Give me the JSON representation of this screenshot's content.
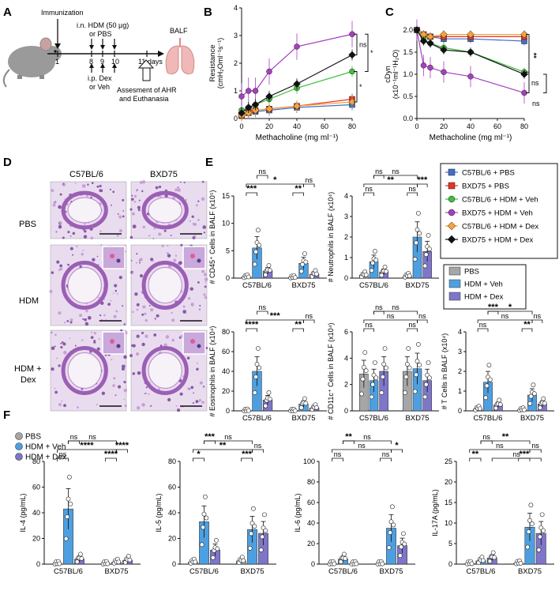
{
  "panel_letters": {
    "A": "A",
    "B": "B",
    "C": "C",
    "D": "D",
    "E": "E",
    "F": "F"
  },
  "panelA": {
    "immunization": "Immunization",
    "treatment": "i.n. HDM (50 µg)",
    "treatment2": "or PBS",
    "drug": "i.p. Dex",
    "drug2": "or Veh",
    "days": [
      "1",
      "8",
      "9",
      "10",
      "11 days"
    ],
    "balf": "BALF",
    "assess1": "Assesment of AHR",
    "assess2": "and Euthanasia"
  },
  "colors": {
    "c57_pbs": "#3f6fc9",
    "bxd_pbs": "#e63323",
    "c57_hdm_veh": "#3fbf3f",
    "bxd_hdm_veh": "#a63fbf",
    "c57_hdm_dex": "#f4a23a",
    "bxd_hdm_dex": "#111111",
    "bar_pbs": "#a6a6a6",
    "bar_veh": "#4d9fe0",
    "bar_dex": "#7d76c9"
  },
  "legend_lines": [
    {
      "label": "C57BL/6 + PBS",
      "color": "#3f6fc9",
      "marker": "square"
    },
    {
      "label": "BXD75 + PBS",
      "color": "#e63323",
      "marker": "square"
    },
    {
      "label": "C57BL/6 + HDM + Veh",
      "color": "#3fbf3f",
      "marker": "circle"
    },
    {
      "label": "BXD75 + HDM + Veh",
      "color": "#a63fbf",
      "marker": "circle"
    },
    {
      "label": "C57BL/6 + HDM + Dex",
      "color": "#f4a23a",
      "marker": "diamond"
    },
    {
      "label": "BXD75 + HDM + Dex",
      "color": "#111111",
      "marker": "diamond"
    }
  ],
  "legend_bars": [
    {
      "label": "PBS",
      "color": "#a6a6a6"
    },
    {
      "label": "HDM + Veh",
      "color": "#4d9fe0"
    },
    {
      "label": "HDM + Dex",
      "color": "#7d76c9"
    }
  ],
  "panelD": {
    "cols": [
      "C57BL/6",
      "BXD75"
    ],
    "rows": [
      "PBS",
      "HDM",
      "HDM +",
      "Dex"
    ]
  },
  "chart_data": [
    {
      "id": "B",
      "type": "line",
      "xlabel": "Methacholine (mg ml⁻¹)",
      "ylabel": "Resistance (cmH₂Oml⁻¹s⁻¹)",
      "ylabel1": "Resistance",
      "ylabel2": "(cmH₂Oml⁻¹s⁻¹)",
      "xlim": [
        0,
        80
      ],
      "ylim": [
        0,
        4
      ],
      "xticks": [
        "0",
        "20",
        "40",
        "60",
        "80"
      ],
      "yticks": [
        "0",
        "1",
        "2",
        "3",
        "4"
      ],
      "x": [
        0,
        5,
        10,
        20,
        40,
        80
      ],
      "series": [
        {
          "name": "C57BL/6 + PBS",
          "values": [
            0.1,
            0.2,
            0.25,
            0.3,
            0.4,
            0.5
          ]
        },
        {
          "name": "BXD75 + PBS",
          "values": [
            0.1,
            0.25,
            0.3,
            0.35,
            0.45,
            0.7
          ]
        },
        {
          "name": "C57BL/6 + HDM + Veh",
          "values": [
            0.3,
            0.4,
            0.5,
            0.7,
            1.1,
            1.7
          ]
        },
        {
          "name": "BXD75 + HDM + Veh",
          "values": [
            0.8,
            1.0,
            1.0,
            1.7,
            2.6,
            3.05
          ]
        },
        {
          "name": "C57BL/6 + HDM + Dex",
          "values": [
            0.1,
            0.2,
            0.3,
            0.35,
            0.45,
            0.6
          ]
        },
        {
          "name": "BXD75 + HDM + Dex",
          "values": [
            0.2,
            0.4,
            0.5,
            0.8,
            1.25,
            2.3
          ]
        }
      ],
      "annotations": [
        "ns",
        "*",
        "*"
      ]
    },
    {
      "id": "C",
      "type": "line",
      "xlabel": "Methacholine (mg ml⁻¹)",
      "ylabel": "cDyn (x10⁻¹ml⁻¹H₂O)",
      "ylabel1": "cDyn",
      "ylabel2": "(x10⁻¹ml⁻¹H₂O)",
      "xlim": [
        0,
        80
      ],
      "ylim": [
        0,
        2.0
      ],
      "xticks": [
        "0",
        "20",
        "40",
        "60",
        "80"
      ],
      "yticks": [
        "0.0",
        "0.5",
        "1.0",
        "1.5",
        "2.0"
      ],
      "x": [
        0,
        5,
        10,
        20,
        40,
        80
      ],
      "series": [
        {
          "name": "C57BL/6 + PBS",
          "values": [
            2.0,
            1.9,
            1.85,
            1.8,
            1.8,
            1.75
          ]
        },
        {
          "name": "BXD75 + PBS",
          "values": [
            2.0,
            1.9,
            1.85,
            1.85,
            1.85,
            1.85
          ]
        },
        {
          "name": "C57BL/6 + HDM + Veh",
          "values": [
            2.0,
            1.8,
            1.7,
            1.6,
            1.5,
            1.05
          ]
        },
        {
          "name": "BXD75 + HDM + Veh",
          "values": [
            2.0,
            1.2,
            1.15,
            1.05,
            0.95,
            0.58
          ]
        },
        {
          "name": "C57BL/6 + HDM + Dex",
          "values": [
            2.0,
            1.9,
            1.85,
            1.9,
            1.9,
            1.9
          ]
        },
        {
          "name": "BXD75 + HDM + Dex",
          "values": [
            2.0,
            1.75,
            1.7,
            1.55,
            1.5,
            1.0
          ]
        }
      ],
      "annotations": [
        "**",
        "ns",
        "ns"
      ]
    },
    {
      "id": "E1",
      "type": "bar",
      "ylabel": "# CD45⁺ Cells in BALF (x10⁵)",
      "ylim": [
        0,
        15
      ],
      "yticks": [
        "0",
        "5",
        "10",
        "15"
      ],
      "categories": [
        "C57BL/6",
        "BXD75"
      ],
      "series": [
        {
          "name": "PBS",
          "values": [
            0.2,
            0.1
          ]
        },
        {
          "name": "HDM + Veh",
          "values": [
            5.5,
            2.7
          ]
        },
        {
          "name": "HDM + Dex",
          "values": [
            1.3,
            0.7
          ]
        }
      ],
      "annotations": [
        "***",
        "*",
        "ns",
        "**",
        "ns"
      ]
    },
    {
      "id": "E2",
      "type": "bar",
      "ylabel": "# Neutrophils in BALF (x10⁴)",
      "ylim": [
        0,
        4
      ],
      "yticks": [
        "0",
        "1",
        "2",
        "3",
        "4"
      ],
      "categories": [
        "C57BL/6",
        "BXD75"
      ],
      "series": [
        {
          "name": "PBS",
          "values": [
            0.15,
            0.1
          ]
        },
        {
          "name": "HDM + Veh",
          "values": [
            0.8,
            2.0
          ]
        },
        {
          "name": "HDM + Dex",
          "values": [
            0.3,
            1.3
          ]
        }
      ],
      "annotations": [
        "ns",
        "**",
        "ns",
        "ns",
        "***",
        "ns"
      ]
    },
    {
      "id": "E3",
      "type": "bar",
      "ylabel": "# Eosinophils in BALF (x10⁴)",
      "ylim": [
        0,
        80
      ],
      "yticks": [
        "0",
        "20",
        "40",
        "60",
        "80"
      ],
      "categories": [
        "C57BL/6",
        "BXD75"
      ],
      "series": [
        {
          "name": "PBS",
          "values": [
            0.2,
            0.1
          ]
        },
        {
          "name": "HDM + Veh",
          "values": [
            40,
            7
          ]
        },
        {
          "name": "HDM + Dex",
          "values": [
            11,
            3
          ]
        }
      ],
      "annotations": [
        "****",
        "***",
        "ns",
        "**",
        "ns"
      ]
    },
    {
      "id": "E4",
      "type": "bar",
      "ylabel": "# CD11c⁺ Cells in BALF (x10⁴)",
      "ylim": [
        0,
        6
      ],
      "yticks": [
        "0",
        "2",
        "4",
        "6"
      ],
      "categories": [
        "C57BL/6",
        "BXD75"
      ],
      "series": [
        {
          "name": "PBS",
          "values": [
            2.8,
            3.0
          ]
        },
        {
          "name": "HDM + Veh",
          "values": [
            2.3,
            3.2
          ]
        },
        {
          "name": "HDM + Dex",
          "values": [
            3.0,
            2.3
          ]
        }
      ],
      "annotations": [
        "ns",
        "ns",
        "ns",
        "ns",
        "ns",
        "ns"
      ]
    },
    {
      "id": "E5",
      "type": "bar",
      "ylabel": "# T Cells in BALF (x10⁴)",
      "ylim": [
        0,
        4
      ],
      "yticks": [
        "0",
        "1",
        "2",
        "3",
        "4"
      ],
      "categories": [
        "C57BL/6",
        "BXD75"
      ],
      "series": [
        {
          "name": "PBS",
          "values": [
            0.1,
            0.05
          ]
        },
        {
          "name": "HDM + Veh",
          "values": [
            1.45,
            0.8
          ]
        },
        {
          "name": "HDM + Dex",
          "values": [
            0.3,
            0.35
          ]
        }
      ],
      "annotations": [
        "ns",
        "ns",
        "***",
        "**",
        "ns",
        "*"
      ]
    },
    {
      "id": "F1",
      "type": "bar",
      "ylabel": "IL-4 (pg/mL)",
      "ylim": [
        0,
        80
      ],
      "yticks": [
        "0",
        "20",
        "40",
        "60",
        "80"
      ],
      "categories": [
        "C57BL/6",
        "BXD75"
      ],
      "series": [
        {
          "name": "PBS",
          "values": [
            0.3,
            0.3
          ]
        },
        {
          "name": "HDM + Veh",
          "values": [
            43,
            1.5
          ]
        },
        {
          "name": "HDM + Dex",
          "values": [
            4,
            3
          ]
        }
      ],
      "annotations": [
        "ns",
        "****",
        "ns",
        "****",
        "****",
        "ns"
      ]
    },
    {
      "id": "F2",
      "type": "bar",
      "ylabel": "IL-5 (pg/mL)",
      "ylim": [
        0,
        80
      ],
      "yticks": [
        "0",
        "20",
        "40",
        "60",
        "80"
      ],
      "categories": [
        "C57BL/6",
        "BXD75"
      ],
      "series": [
        {
          "name": "PBS",
          "values": [
            1.5,
            2.5
          ]
        },
        {
          "name": "HDM + Veh",
          "values": [
            33,
            27
          ]
        },
        {
          "name": "HDM + Dex",
          "values": [
            11,
            24
          ]
        }
      ],
      "annotations": [
        "*",
        "**",
        "***",
        "***",
        "ns",
        "ns"
      ]
    },
    {
      "id": "F3",
      "type": "bar",
      "ylabel": "IL-6 (pg/mL)",
      "ylim": [
        0,
        100
      ],
      "yticks": [
        "0",
        "20",
        "40",
        "60",
        "80",
        "100"
      ],
      "categories": [
        "C57BL/6",
        "BXD75"
      ],
      "series": [
        {
          "name": "PBS",
          "values": [
            0.3,
            0.3
          ]
        },
        {
          "name": "HDM + Veh",
          "values": [
            5,
            35
          ]
        },
        {
          "name": "HDM + Dex",
          "values": [
            0.3,
            18
          ]
        }
      ],
      "annotations": [
        "ns",
        "ns",
        "**",
        "ns",
        "*",
        "ns"
      ]
    },
    {
      "id": "F4",
      "type": "bar",
      "ylabel": "IL-17A (pg/mL)",
      "ylim": [
        0,
        25
      ],
      "yticks": [
        "0",
        "5",
        "10",
        "15",
        "20",
        "25"
      ],
      "categories": [
        "C57BL/6",
        "BXD75"
      ],
      "series": [
        {
          "name": "PBS",
          "values": [
            0.1,
            0.2
          ]
        },
        {
          "name": "HDM + Veh",
          "values": [
            0.8,
            9
          ]
        },
        {
          "name": "HDM + Dex",
          "values": [
            1.5,
            7.5
          ]
        }
      ],
      "annotations": [
        "**",
        "ns",
        "ns",
        "***",
        "ns",
        "**",
        "ns"
      ]
    }
  ]
}
